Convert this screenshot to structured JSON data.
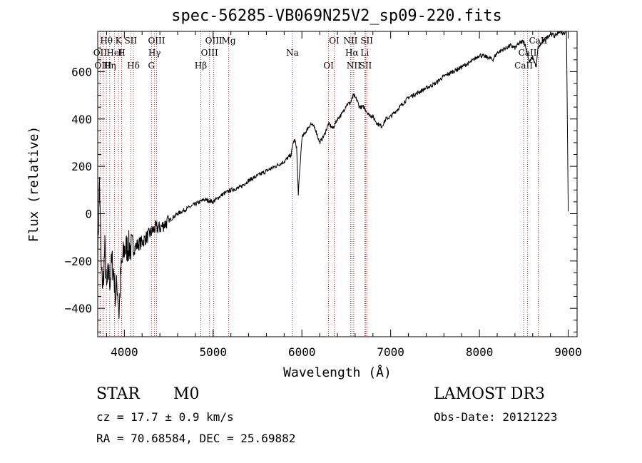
{
  "chart_data": {
    "type": "line",
    "title": "spec-56285-VB069N25V2_sp09-220.fits",
    "xlabel": "Wavelength (Å)",
    "ylabel": "Flux (relative)",
    "xlim": [
      3700,
      9100
    ],
    "ylim": [
      -520,
      770
    ],
    "xticks": [
      4000,
      5000,
      6000,
      7000,
      8000,
      9000
    ],
    "xtick_labels": [
      "4000",
      "5000",
      "6000",
      "7000",
      "8000",
      "9000"
    ],
    "yticks": [
      -400,
      -200,
      0,
      200,
      400,
      600
    ],
    "ytick_labels": [
      "−400",
      "−200",
      "0",
      "200",
      "400",
      "600"
    ],
    "series": [
      {
        "name": "flux",
        "x": [
          3700,
          3720,
          3740,
          3760,
          3780,
          3800,
          3820,
          3840,
          3860,
          3880,
          3900,
          3920,
          3940,
          3960,
          3980,
          4000,
          4050,
          4100,
          4150,
          4200,
          4250,
          4300,
          4350,
          4400,
          4500,
          4600,
          4700,
          4800,
          4900,
          5000,
          5100,
          5200,
          5300,
          5400,
          5500,
          5600,
          5700,
          5800,
          5880,
          5900,
          5920,
          5940,
          5960,
          6000,
          6050,
          6100,
          6150,
          6200,
          6250,
          6300,
          6350,
          6400,
          6450,
          6500,
          6550,
          6580,
          6620,
          6650,
          6700,
          6750,
          6800,
          6850,
          6900,
          6950,
          7000,
          7050,
          7100,
          7150,
          7200,
          7300,
          7400,
          7500,
          7600,
          7700,
          7800,
          7900,
          8000,
          8100,
          8150,
          8200,
          8250,
          8300,
          8350,
          8400,
          8450,
          8500,
          8540,
          8560,
          8600,
          8640,
          8660,
          8700,
          8750,
          8800,
          8850,
          8900,
          8950,
          8980,
          9000
        ],
        "y": [
          -200,
          150,
          -250,
          -300,
          -150,
          -330,
          -250,
          -280,
          -200,
          -250,
          -350,
          -300,
          -420,
          -250,
          -200,
          -150,
          -140,
          -150,
          -130,
          -120,
          -100,
          -80,
          -60,
          -60,
          -30,
          0,
          20,
          40,
          60,
          50,
          80,
          100,
          110,
          140,
          160,
          180,
          200,
          220,
          250,
          300,
          310,
          280,
          85,
          320,
          350,
          380,
          360,
          300,
          330,
          380,
          360,
          400,
          420,
          460,
          470,
          500,
          480,
          450,
          450,
          420,
          410,
          380,
          370,
          400,
          410,
          430,
          450,
          470,
          490,
          510,
          530,
          550,
          580,
          600,
          620,
          640,
          670,
          660,
          650,
          680,
          690,
          700,
          710,
          700,
          720,
          730,
          680,
          640,
          660,
          620,
          700,
          720,
          740,
          760,
          750,
          770,
          760,
          780,
          10
        ]
      }
    ],
    "lines": [
      {
        "label": "Hθ",
        "x": 3798
      },
      {
        "label": "OII",
        "x": 3727
      },
      {
        "label": "OIII",
        "x": 3760
      },
      {
        "label": "K",
        "x": 3934
      },
      {
        "label": "HeI",
        "x": 3889
      },
      {
        "label": "Hη",
        "x": 3835
      },
      {
        "label": "SII",
        "x": 4072
      },
      {
        "label": "H",
        "x": 3969
      },
      {
        "label": "Hδ",
        "x": 4102
      },
      {
        "label": "OIII",
        "x": 4363
      },
      {
        "label": "Hγ",
        "x": 4340
      },
      {
        "label": "G",
        "x": 4305
      },
      {
        "label": "OIII",
        "x": 5007
      },
      {
        "label": "OIII",
        "x": 4959
      },
      {
        "label": "Hβ",
        "x": 4861
      },
      {
        "label": "Mg",
        "x": 5175
      },
      {
        "label": "Na",
        "x": 5893
      },
      {
        "label": "OI",
        "x": 6300
      },
      {
        "label": "OI",
        "x": 6364
      },
      {
        "label": "Hα",
        "x": 6563
      },
      {
        "label": "SII",
        "x": 6717
      },
      {
        "label": "NII",
        "x": 6548
      },
      {
        "label": "Li",
        "x": 6708
      },
      {
        "label": "NII",
        "x": 6584
      },
      {
        "label": "SII",
        "x": 6731
      },
      {
        "label": "CaII",
        "x": 8542
      },
      {
        "label": "CaII",
        "x": 8498
      },
      {
        "label": "CaII",
        "x": 8662
      }
    ]
  },
  "info": {
    "object_class": "STAR",
    "subclass": "M0",
    "survey": "LAMOST DR3",
    "cz": "cz = 17.7 ± 0.9 km/s",
    "obs_date": "Obs-Date: 20121223",
    "coords": "RA =  70.68584, DEC =  25.69882"
  }
}
